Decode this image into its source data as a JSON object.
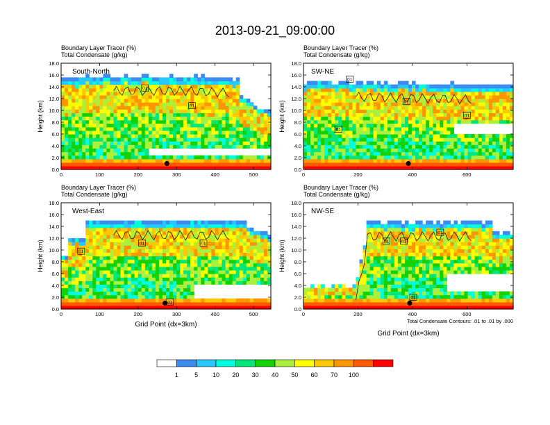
{
  "page_title": "2013-09-21_09:00:00",
  "panel_header_lines": [
    "Boundary Layer Tracer   (%)",
    "Total Condensate   (g/kg)"
  ],
  "contour_note": "Total Condensate Contours: .01 to .01 by .000",
  "colorbar": {
    "levels": [
      "1",
      "5",
      "10",
      "20",
      "30",
      "40",
      "50",
      "60",
      "70",
      "100"
    ],
    "colors": [
      "#ffffff",
      "#3c8cf0",
      "#28c8ff",
      "#00ffdc",
      "#00e678",
      "#14d200",
      "#aaf03c",
      "#ffff00",
      "#ffc800",
      "#ff9600",
      "#ff5a00",
      "#ff0000"
    ]
  },
  "chart_data": [
    {
      "type": "heatmap",
      "label": "South-North",
      "ylabel": "Height (km)",
      "xlabel": "",
      "xlim": [
        0,
        545
      ],
      "ylim": [
        0,
        18
      ],
      "xticks": [
        "0",
        "100",
        "200",
        "300",
        "400",
        "500"
      ],
      "xtick_values": [
        0,
        100,
        200,
        300,
        400,
        500
      ],
      "yticks": [
        "0.0",
        "2.0",
        "4.0",
        "6.0",
        "8.0",
        "10.0",
        "12.0",
        "14.0",
        "16.0",
        "18.0"
      ],
      "yvalues": [
        0,
        2,
        4,
        6,
        8,
        10,
        12,
        14,
        16,
        18
      ],
      "contour_labels": [
        {
          "text": "01",
          "x": 218,
          "y": 13.8
        },
        {
          "text": "01",
          "x": 340,
          "y": 10.8
        }
      ],
      "marker": {
        "x": 275,
        "y": 1.0
      }
    },
    {
      "type": "heatmap",
      "label": "SW-NE",
      "ylabel": "Height (km)",
      "xlabel": "",
      "xlim": [
        0,
        770
      ],
      "ylim": [
        0,
        18
      ],
      "xticks": [
        "0",
        "200",
        "400",
        "600"
      ],
      "xtick_values": [
        0,
        200,
        400,
        600
      ],
      "yticks": [
        "0.0",
        "2.0",
        "4.0",
        "6.0",
        "8.0",
        "10.0",
        "12.0",
        "14.0",
        "16.0",
        "18.0"
      ],
      "yvalues": [
        0,
        2,
        4,
        6,
        8,
        10,
        12,
        14,
        16,
        18
      ],
      "contour_labels": [
        {
          "text": "01",
          "x": 170,
          "y": 15.3
        },
        {
          "text": "01",
          "x": 128,
          "y": 6.8
        },
        {
          "text": "01",
          "x": 378,
          "y": 11.5
        },
        {
          "text": "01",
          "x": 600,
          "y": 9.2
        }
      ],
      "marker": {
        "x": 385,
        "y": 1.0
      }
    },
    {
      "type": "heatmap",
      "label": "West-East",
      "ylabel": "Height (km)",
      "xlabel": "Grid Point (dx=3km)",
      "xlim": [
        0,
        545
      ],
      "ylim": [
        0,
        18
      ],
      "xticks": [
        "0",
        "100",
        "200",
        "300",
        "400",
        "500"
      ],
      "xtick_values": [
        0,
        100,
        200,
        300,
        400,
        500
      ],
      "yticks": [
        "0.0",
        "2.0",
        "4.0",
        "6.0",
        "8.0",
        "10.0",
        "12.0",
        "14.0",
        "16.0",
        "18.0"
      ],
      "yvalues": [
        0,
        2,
        4,
        6,
        8,
        10,
        12,
        14,
        16,
        18
      ],
      "contour_labels": [
        {
          "text": "01",
          "x": 52,
          "y": 9.8
        },
        {
          "text": "01",
          "x": 210,
          "y": 11.2
        },
        {
          "text": "01",
          "x": 370,
          "y": 11.2
        },
        {
          "text": "01",
          "x": 283,
          "y": 1.2
        }
      ],
      "marker": {
        "x": 270,
        "y": 1.0
      }
    },
    {
      "type": "heatmap",
      "label": "NW-SE",
      "ylabel": "Height (km)",
      "xlabel": "Grid Point (dx=3km)",
      "xlim": [
        0,
        770
      ],
      "ylim": [
        0,
        18
      ],
      "xticks": [
        "0",
        "200",
        "400",
        "600"
      ],
      "xtick_values": [
        0,
        200,
        400,
        600
      ],
      "yticks": [
        "0.0",
        "2.0",
        "4.0",
        "6.0",
        "8.0",
        "10.0",
        "12.0",
        "14.0",
        "16.0",
        "18.0"
      ],
      "yvalues": [
        0,
        2,
        4,
        6,
        8,
        10,
        12,
        14,
        16,
        18
      ],
      "contour_labels": [
        {
          "text": "01",
          "x": 305,
          "y": 11.5
        },
        {
          "text": "01",
          "x": 368,
          "y": 11.5
        },
        {
          "text": "01",
          "x": 502,
          "y": 13.0
        },
        {
          "text": "01",
          "x": 403,
          "y": 2.0
        }
      ],
      "marker": {
        "x": 390,
        "y": 1.0
      }
    }
  ]
}
